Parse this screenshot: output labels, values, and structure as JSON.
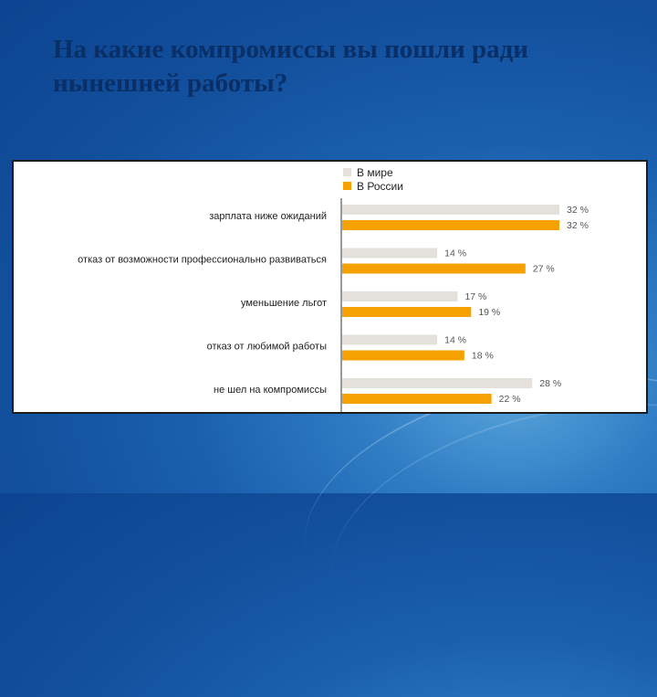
{
  "title": "На какие компромиссы вы пошли ради нынешней работы?",
  "chart_data": {
    "type": "bar",
    "orientation": "horizontal",
    "categories": [
      "зарплата ниже ожиданий",
      "отказ от возможности профессионально развиваться",
      "уменьшение льгот",
      "отказ от любимой работы",
      "не шел на компромиссы"
    ],
    "series": [
      {
        "name": "В мире",
        "values": [
          32,
          14,
          17,
          14,
          28
        ],
        "color": "#e4e1da"
      },
      {
        "name": "В России",
        "values": [
          32,
          27,
          19,
          18,
          22
        ],
        "color": "#f5a200"
      }
    ],
    "value_suffix": " %",
    "legend": "top",
    "xlim": [
      0,
      32
    ]
  }
}
